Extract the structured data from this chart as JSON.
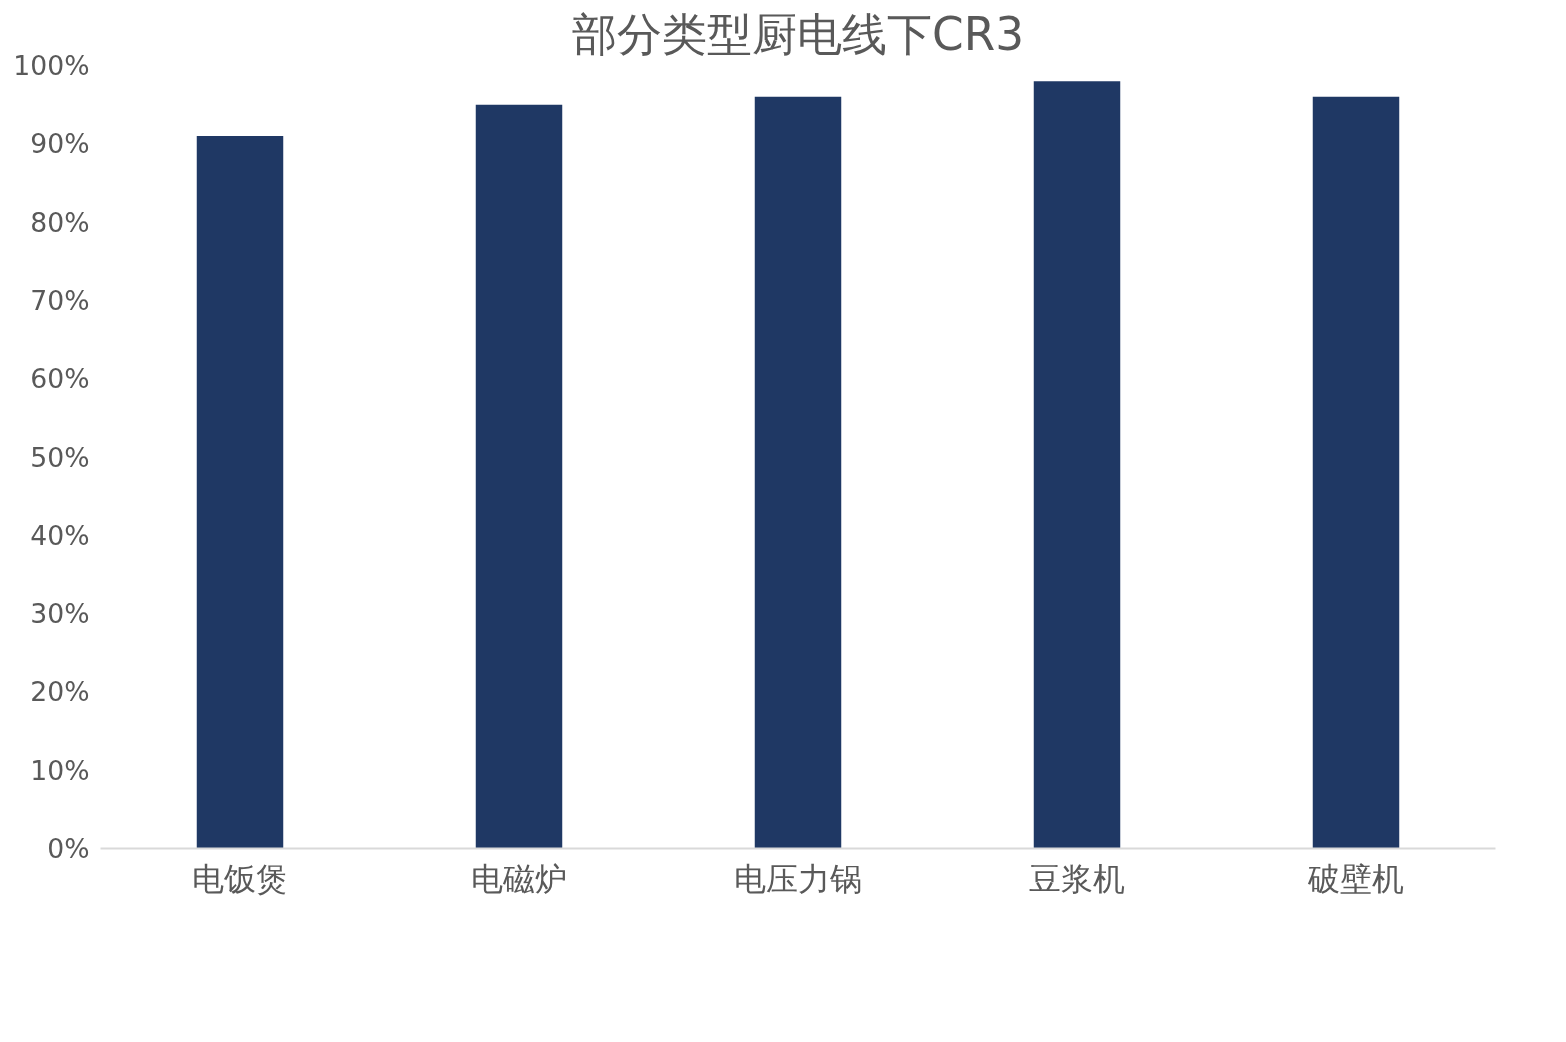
{
  "chart_data": {
    "type": "bar",
    "title": "部分类型厨电线下CR3",
    "categories": [
      "电饭煲",
      "电磁炉",
      "电压力锅",
      "豆浆机",
      "破壁机"
    ],
    "values": [
      91,
      95,
      96,
      98,
      96
    ],
    "color": "#1f3864",
    "ylim": [
      0,
      100
    ],
    "yticks": [
      {
        "value": 0,
        "label": "0%"
      },
      {
        "value": 10,
        "label": "10%"
      },
      {
        "value": 20,
        "label": "20%"
      },
      {
        "value": 30,
        "label": "30%"
      },
      {
        "value": 40,
        "label": "40%"
      },
      {
        "value": 50,
        "label": "50%"
      },
      {
        "value": 60,
        "label": "60%"
      },
      {
        "value": 70,
        "label": "70%"
      },
      {
        "value": 80,
        "label": "80%"
      },
      {
        "value": 90,
        "label": "90%"
      },
      {
        "value": 100,
        "label": "100%"
      }
    ],
    "grid": false
  }
}
